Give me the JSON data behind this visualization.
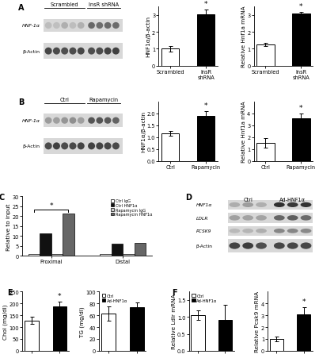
{
  "panel_A": {
    "blot_label1": "HNF-1α",
    "blot_label2": "β-Actin",
    "blot_groups": [
      "Scrambled",
      "InsR shRNA"
    ],
    "n_lanes": [
      5,
      4
    ],
    "bar1": {
      "categories": [
        "Scrambled",
        "InsR\nshRNA"
      ],
      "values": [
        1.0,
        3.05
      ],
      "errors": [
        0.15,
        0.25
      ],
      "ylabel": "HNF1α/β-actin",
      "ylim": [
        0,
        3.5
      ],
      "yticks": [
        0,
        1,
        2,
        3
      ]
    },
    "bar2": {
      "categories": [
        "Scrambled",
        "InsR\nshRNA"
      ],
      "values": [
        1.25,
        3.1
      ],
      "errors": [
        0.1,
        0.08
      ],
      "ylabel": "Relative Hnf1a mRNA",
      "ylim": [
        0,
        3.5
      ],
      "yticks": [
        0,
        1,
        2,
        3
      ]
    }
  },
  "panel_B": {
    "blot_label1": "HNF-1α",
    "blot_label2": "β-Actin",
    "blot_groups": [
      "Ctrl",
      "Rapamycin"
    ],
    "n_lanes": [
      5,
      4
    ],
    "bar1": {
      "categories": [
        "Ctrl",
        "Rapamycin"
      ],
      "values": [
        1.15,
        1.9
      ],
      "errors": [
        0.1,
        0.2
      ],
      "ylabel": "HNF1α/β-actin",
      "ylim": [
        0,
        2.5
      ],
      "yticks": [
        0.0,
        0.5,
        1.0,
        1.5,
        2.0
      ]
    },
    "bar2": {
      "categories": [
        "Ctrl",
        "Rapamycin"
      ],
      "values": [
        1.5,
        3.6
      ],
      "errors": [
        0.4,
        0.35
      ],
      "ylabel": "Relative Hnf1a mRNA",
      "ylim": [
        0,
        5
      ],
      "yticks": [
        0,
        1,
        2,
        3,
        4
      ]
    }
  },
  "panel_C": {
    "groups": [
      "Proximal",
      "Distal"
    ],
    "series": {
      "Ctrl IgG": [
        0.8,
        0.8
      ],
      "Ctrl HNF1α": [
        11.5,
        6.0
      ],
      "Rapamycin IgG": [
        0.8,
        0.8
      ],
      "Rapamycin HNF1α": [
        21.5,
        6.5
      ]
    },
    "ylabel": "Relative to input",
    "ylim": [
      0,
      30
    ],
    "yticks": [
      0,
      5,
      10,
      15,
      20,
      25,
      30
    ]
  },
  "panel_D": {
    "labels": [
      "HNF1α",
      "LDLR",
      "PCSK9",
      "β-Actin"
    ],
    "groups": [
      "Ctrl",
      "Ad-HNF1α"
    ],
    "n_lanes": [
      3,
      3
    ]
  },
  "panel_E": {
    "chol": {
      "values": [
        128,
        186
      ],
      "errors": [
        15,
        20
      ],
      "ylabel": "Chol (mg/dl)",
      "ylim": [
        0,
        250
      ],
      "yticks": [
        0,
        50,
        100,
        150,
        200,
        250
      ]
    },
    "tg": {
      "values": [
        63,
        73
      ],
      "errors": [
        12,
        9
      ],
      "ylabel": "TG (mg/dl)",
      "ylim": [
        0,
        100
      ],
      "yticks": [
        0,
        20,
        40,
        60,
        80,
        100
      ]
    },
    "legend": [
      "Ctrl",
      "Ad-HNF1α"
    ]
  },
  "panel_F": {
    "ldlr": {
      "values": [
        1.05,
        0.9
      ],
      "errors": [
        0.15,
        0.45
      ],
      "ylabel": "Relative Ldlr mRNA",
      "ylim": [
        0,
        1.75
      ],
      "yticks": [
        0.0,
        0.5,
        1.0,
        1.5
      ]
    },
    "pcsk9": {
      "values": [
        1.0,
        3.1
      ],
      "errors": [
        0.2,
        0.6
      ],
      "ylabel": "Relative Pcsk9 mRNA",
      "ylim": [
        0,
        5
      ],
      "yticks": [
        0,
        1,
        2,
        3,
        4
      ]
    },
    "legend": [
      "Ctrl",
      "Ad-HNF1α"
    ]
  },
  "colors": {
    "white_bar": "#ffffff",
    "black_bar": "#111111",
    "light_gray": "#cccccc",
    "dark_gray": "#666666",
    "blot_bg": "#d8d8d8",
    "edge": "#000000"
  },
  "fs_label": 5.2,
  "fs_tick": 4.8,
  "fs_panel": 7.0
}
